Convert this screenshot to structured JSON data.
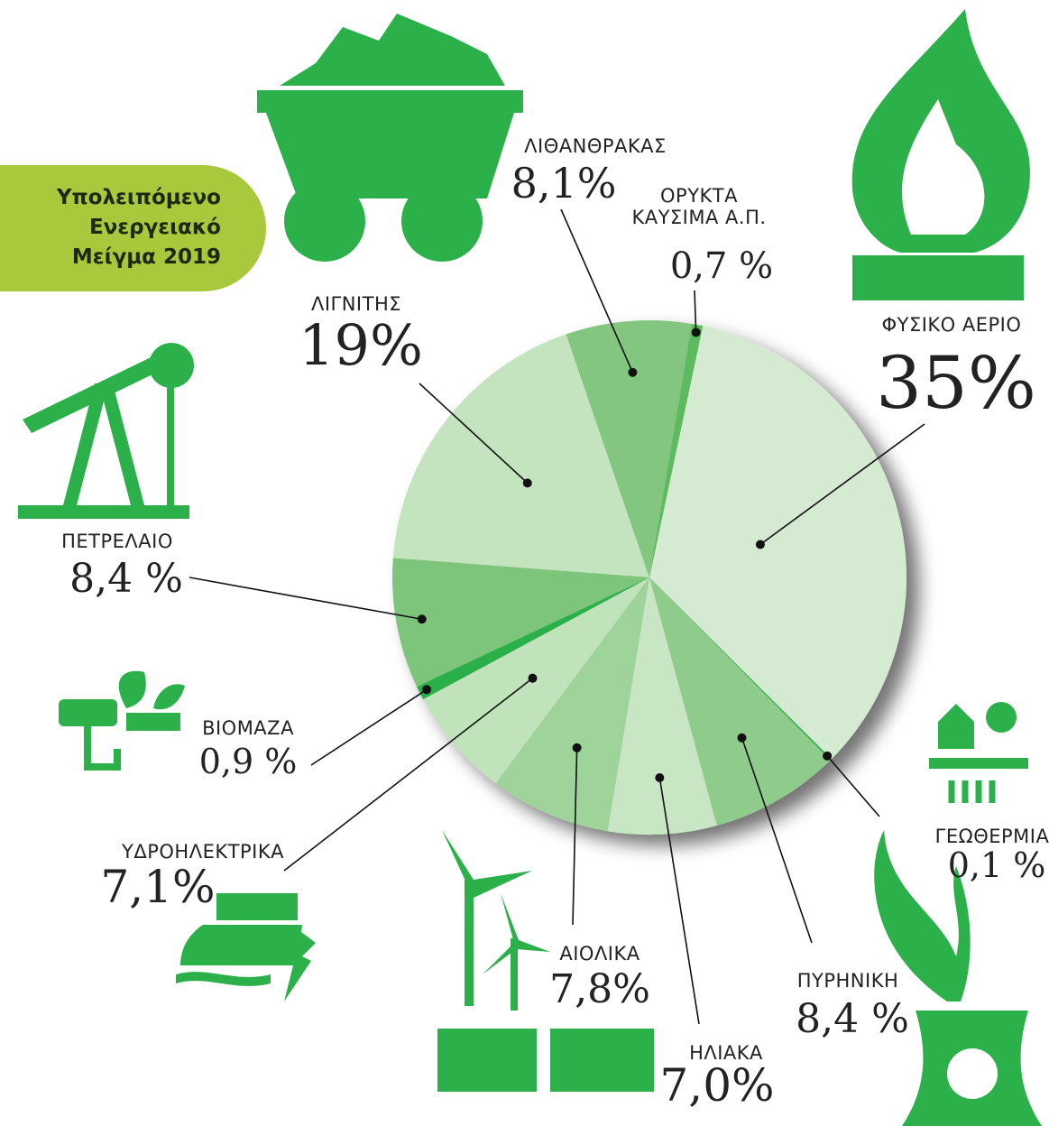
{
  "chart_data": {
    "type": "pie",
    "title": "Υπολειπόμενο Ενεργειακό Μείγμα 2019",
    "categories": [
      "ΦΥΣΙΚΟ ΑΕΡΙΟ",
      "ΓΕΩΘΕΡΜΙΑ",
      "ΠΥΡΗΝΙΚΗ",
      "ΗΛΙΑΚΑ",
      "ΑΙΟΛΙΚΑ",
      "ΥΔΡΟΗΛΕΚΤΡΙΚΑ",
      "ΒΙΟΜΑΖΑ",
      "ΠΕΤΡΕΛΑΙΟ",
      "ΛΙΓΝΙΤΗΣ",
      "ΛΙΘΑΝΘΡΑΚΑΣ",
      "ΟΡΥΚΤΑ ΚΑΥΣΙΜΑ Α.Π."
    ],
    "values": [
      35,
      0.1,
      8.4,
      7.0,
      7.8,
      7.1,
      0.9,
      8.4,
      19,
      8.1,
      0.7
    ],
    "value_labels": [
      "35%",
      "0,1 %",
      "8,4 %",
      "7,0%",
      "7,8%",
      "7,1%",
      "0,9 %",
      "8,4 %",
      "19%",
      "8,1%",
      "0,7 %"
    ],
    "colors": [
      "#d5ebd1",
      "#2bb04a",
      "#8fcc8c",
      "#c8e6c4",
      "#9ed49a",
      "#c0e3bb",
      "#2bb04a",
      "#7cc57a",
      "#c4e4c0",
      "#82c67f",
      "#5bbb5f"
    ]
  }
}
